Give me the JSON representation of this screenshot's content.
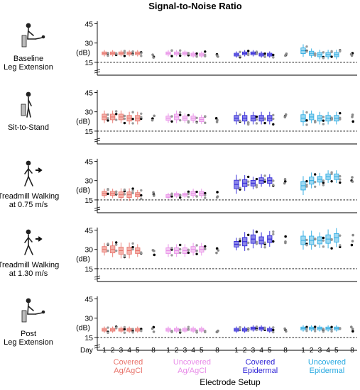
{
  "chart_data": {
    "type": "box",
    "title": "Signal-to-Noise Ratio",
    "xlabel": "Electrode Setup",
    "ylabel": "(dB)",
    "yticks": [
      "15",
      "30",
      "45"
    ],
    "ylim": [
      10,
      48
    ],
    "reference_line": 15,
    "day_label": "Day",
    "days": [
      "1",
      "2",
      "3",
      "4",
      "5",
      "8"
    ],
    "groups": [
      {
        "line1": "Covered",
        "line2": "Ag/AgCl",
        "color": "#e8736b",
        "fill": "#f3b1aa"
      },
      {
        "line1": "Uncovered",
        "line2": "Ag/AgCl",
        "color": "#e88ce8",
        "fill": "#f4c8f2"
      },
      {
        "line1": "Covered",
        "line2": "Epidermal",
        "color": "#2a1fd6",
        "fill": "#8a86e8"
      },
      {
        "line1": "Uncovered",
        "line2": "Epidermal",
        "color": "#27a9e1",
        "fill": "#9fd9f2"
      }
    ],
    "panels": [
      {
        "label_lines": [
          "Baseline",
          "Leg Extension"
        ],
        "icon": "seated-leg-extension-icon",
        "medians": [
          [
            22,
            22,
            22,
            22,
            22,
            21
          ],
          [
            22,
            22,
            22,
            21,
            21,
            21
          ],
          [
            21,
            22,
            22,
            21,
            21,
            21
          ],
          [
            24,
            22,
            21,
            21,
            21,
            21
          ]
        ],
        "spreads": [
          [
            2,
            2,
            2,
            2,
            2,
            3
          ],
          [
            2,
            2,
            2,
            2,
            2,
            2
          ],
          [
            2,
            2,
            2,
            2,
            2,
            2
          ],
          [
            4,
            3,
            3,
            3,
            3,
            2
          ]
        ]
      },
      {
        "label_lines": [
          "Sit-to-Stand"
        ],
        "icon": "sit-to-stand-icon",
        "medians": [
          [
            26,
            26,
            26,
            25,
            25,
            25
          ],
          [
            25,
            26,
            25,
            25,
            24,
            25
          ],
          [
            25,
            25,
            25,
            25,
            25,
            25
          ],
          [
            25,
            26,
            25,
            25,
            25,
            25
          ]
        ],
        "spreads": [
          [
            4,
            4,
            4,
            4,
            4,
            3
          ],
          [
            3,
            4,
            3,
            3,
            3,
            3
          ],
          [
            4,
            4,
            4,
            4,
            4,
            3
          ],
          [
            5,
            4,
            4,
            4,
            4,
            3
          ]
        ]
      },
      {
        "label_lines": [
          "Treadmill Walking",
          "at 0.75 m/s"
        ],
        "icon": "walking-slow-icon",
        "medians": [
          [
            20,
            20,
            19,
            19,
            19,
            19
          ],
          [
            18,
            19,
            19,
            20,
            20,
            19
          ],
          [
            27,
            28,
            28,
            30,
            30,
            31
          ],
          [
            26,
            30,
            31,
            33,
            33,
            31
          ]
        ],
        "spreads": [
          [
            3,
            3,
            4,
            4,
            3,
            3
          ],
          [
            2,
            2,
            2,
            3,
            3,
            2
          ],
          [
            6,
            5,
            4,
            4,
            4,
            3
          ],
          [
            6,
            5,
            4,
            4,
            4,
            3
          ]
        ]
      },
      {
        "label_lines": [
          "Treadmill Walking",
          "at 1.30 m/s"
        ],
        "icon": "walking-fast-icon",
        "medians": [
          [
            30,
            30,
            29,
            29,
            29,
            28
          ],
          [
            29,
            29,
            29,
            30,
            30,
            30
          ],
          [
            34,
            36,
            38,
            37,
            38,
            39
          ],
          [
            37,
            37,
            37,
            38,
            39,
            37
          ]
        ],
        "spreads": [
          [
            4,
            5,
            5,
            5,
            4,
            3
          ],
          [
            4,
            4,
            4,
            4,
            4,
            3
          ],
          [
            4,
            6,
            6,
            5,
            5,
            4
          ],
          [
            6,
            6,
            5,
            6,
            6,
            4
          ]
        ]
      },
      {
        "label_lines": [
          "Post",
          "Leg Extension"
        ],
        "icon": "post-leg-extension-icon",
        "medians": [
          [
            21,
            21,
            21,
            21,
            21,
            21
          ],
          [
            21,
            21,
            21,
            21,
            21,
            21
          ],
          [
            21,
            21,
            22,
            22,
            21,
            21
          ],
          [
            22,
            22,
            22,
            22,
            22,
            22
          ]
        ],
        "spreads": [
          [
            2,
            2,
            2,
            2,
            2,
            2
          ],
          [
            2,
            2,
            2,
            2,
            2,
            2
          ],
          [
            2,
            2,
            2,
            2,
            2,
            2
          ],
          [
            2,
            2,
            2,
            2,
            2,
            2
          ]
        ]
      }
    ]
  }
}
